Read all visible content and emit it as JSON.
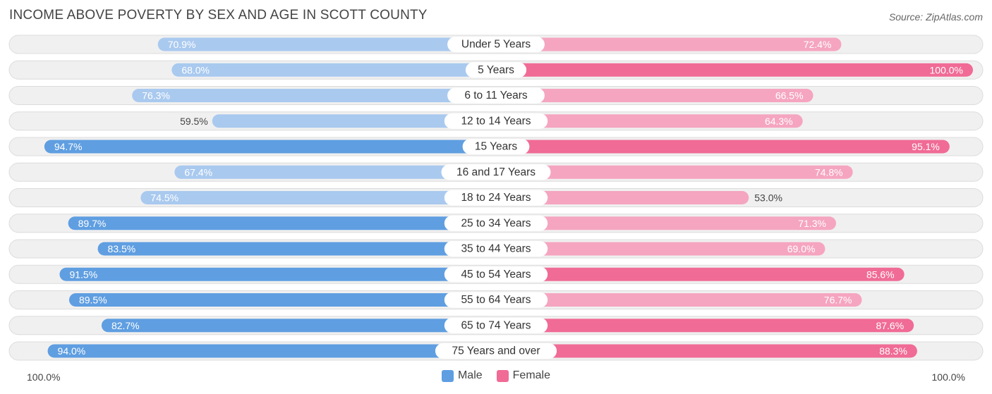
{
  "title": "INCOME ABOVE POVERTY BY SEX AND AGE IN SCOTT COUNTY",
  "source": "Source: ZipAtlas.com",
  "axis": {
    "left_label": "100.0%",
    "right_label": "100.0%"
  },
  "legend": {
    "male": "Male",
    "female": "Female"
  },
  "colors": {
    "male_strong": "#5f9ee0",
    "male_light": "#a9c9ef",
    "female_strong": "#f06b96",
    "female_light": "#f5a5c0",
    "row_bg": "#f0f0f0",
    "row_border": "#dcdcdc"
  },
  "chart_data": {
    "type": "bar",
    "orientation": "horizontal-diverging",
    "title": "INCOME ABOVE POVERTY BY SEX AND AGE IN SCOTT COUNTY",
    "xlim": [
      0,
      100
    ],
    "unit": "%",
    "categories": [
      "Under 5 Years",
      "5 Years",
      "6 to 11 Years",
      "12 to 14 Years",
      "15 Years",
      "16 and 17 Years",
      "18 to 24 Years",
      "25 to 34 Years",
      "35 to 44 Years",
      "45 to 54 Years",
      "55 to 64 Years",
      "65 to 74 Years",
      "75 Years and over"
    ],
    "series": [
      {
        "name": "Male",
        "side": "left",
        "values": [
          70.9,
          68.0,
          76.3,
          59.5,
          94.7,
          67.4,
          74.5,
          89.7,
          83.5,
          91.5,
          89.5,
          82.7,
          94.0
        ],
        "labels": [
          "70.9%",
          "68.0%",
          "76.3%",
          "59.5%",
          "94.7%",
          "67.4%",
          "74.5%",
          "89.7%",
          "83.5%",
          "91.5%",
          "89.5%",
          "82.7%",
          "94.0%"
        ]
      },
      {
        "name": "Female",
        "side": "right",
        "values": [
          72.4,
          100.0,
          66.5,
          64.3,
          95.1,
          74.8,
          53.0,
          71.3,
          69.0,
          85.6,
          76.7,
          87.6,
          88.3
        ],
        "labels": [
          "72.4%",
          "100.0%",
          "66.5%",
          "64.3%",
          "95.1%",
          "74.8%",
          "53.0%",
          "71.3%",
          "69.0%",
          "85.6%",
          "76.7%",
          "87.6%",
          "88.3%"
        ]
      }
    ]
  }
}
